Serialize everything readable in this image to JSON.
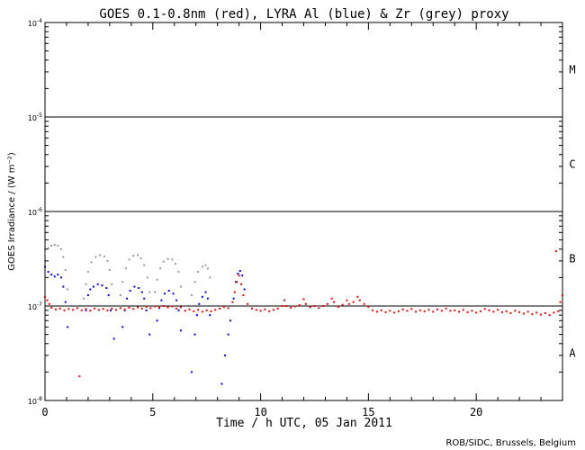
{
  "chart_data": {
    "type": "scatter",
    "title": "GOES 0.1-0.8nm (red), LYRA Al (blue) & Zr (grey) proxy",
    "xlabel": "Time / h UTC, 05 Jan 2011",
    "ylabel": "GOES Irradiance / (W m⁻²)",
    "xlim": [
      0,
      24
    ],
    "ylim": [
      1e-08,
      0.0001
    ],
    "yscale": "log",
    "x_ticks": [
      0,
      5,
      10,
      15,
      20
    ],
    "x_tick_labels": [
      "0",
      "5",
      "10",
      "15",
      "20"
    ],
    "y_tick_labels": [
      {
        "base": "10",
        "exp": "-8",
        "value": 1e-08
      },
      {
        "base": "10",
        "exp": "-7",
        "value": 1e-07
      },
      {
        "base": "10",
        "exp": "-6",
        "value": 1e-06
      },
      {
        "base": "10",
        "exp": "-5",
        "value": 1e-05
      },
      {
        "base": "10",
        "exp": "-4",
        "value": 0.0001
      }
    ],
    "flare_class_lines": [
      1e-07,
      1e-06,
      1e-05
    ],
    "flare_classes": [
      {
        "label": "A",
        "value": 3.16e-08
      },
      {
        "label": "B",
        "value": 3.16e-07
      },
      {
        "label": "C",
        "value": 3.16e-06
      },
      {
        "label": "M",
        "value": 3.16e-05
      }
    ],
    "series": [
      {
        "name": "GOES 0.1-0.8nm",
        "color": "#ff0000",
        "points": [
          [
            0.0,
            1.25e-07
          ],
          [
            0.1,
            1.15e-07
          ],
          [
            0.2,
            1.05e-07
          ],
          [
            0.3,
            9.6e-08
          ],
          [
            0.5,
            9.2e-08
          ],
          [
            0.7,
            9.4e-08
          ],
          [
            0.9,
            9e-08
          ],
          [
            1.1,
            9.3e-08
          ],
          [
            1.3,
            9.1e-08
          ],
          [
            1.5,
            9.5e-08
          ],
          [
            1.6,
            1.8e-08
          ],
          [
            1.7,
            9e-08
          ],
          [
            1.9,
            9.3e-08
          ],
          [
            2.1,
            8.9e-08
          ],
          [
            2.3,
            9.4e-08
          ],
          [
            2.5,
            9.1e-08
          ],
          [
            2.7,
            9.3e-08
          ],
          [
            2.9,
            9e-08
          ],
          [
            3.1,
            9.4e-08
          ],
          [
            3.3,
            9.1e-08
          ],
          [
            3.5,
            9.5e-08
          ],
          [
            3.7,
            9.2e-08
          ],
          [
            3.9,
            9.6e-08
          ],
          [
            4.1,
            9.3e-08
          ],
          [
            4.3,
            9.7e-08
          ],
          [
            4.5,
            9.4e-08
          ],
          [
            4.7,
            9.8e-08
          ],
          [
            4.9,
            9.5e-08
          ],
          [
            5.1,
            9.9e-08
          ],
          [
            5.3,
            9.6e-08
          ],
          [
            5.5,
            1e-07
          ],
          [
            5.7,
            9.7e-08
          ],
          [
            5.9,
            9.9e-08
          ],
          [
            6.1,
            9.4e-08
          ],
          [
            6.3,
            9.7e-08
          ],
          [
            6.5,
            8.9e-08
          ],
          [
            6.7,
            9.2e-08
          ],
          [
            6.9,
            8.8e-08
          ],
          [
            7.1,
            9.1e-08
          ],
          [
            7.3,
            8.7e-08
          ],
          [
            7.5,
            9e-08
          ],
          [
            7.7,
            8.8e-08
          ],
          [
            7.9,
            9.1e-08
          ],
          [
            8.1,
            9.4e-08
          ],
          [
            8.3,
            9.8e-08
          ],
          [
            8.5,
            9.5e-08
          ],
          [
            8.7,
            1.1e-07
          ],
          [
            8.8,
            1.4e-07
          ],
          [
            8.9,
            1.8e-07
          ],
          [
            9.0,
            2.1e-07
          ],
          [
            9.1,
            1.7e-07
          ],
          [
            9.2,
            1.3e-07
          ],
          [
            9.4,
            1.05e-07
          ],
          [
            9.6,
            9.4e-08
          ],
          [
            9.8,
            9.1e-08
          ],
          [
            10.0,
            8.9e-08
          ],
          [
            10.2,
            9.2e-08
          ],
          [
            10.4,
            8.8e-08
          ],
          [
            10.6,
            9.1e-08
          ],
          [
            10.8,
            9.4e-08
          ],
          [
            11.0,
            1e-07
          ],
          [
            11.1,
            1.15e-07
          ],
          [
            11.2,
            1e-07
          ],
          [
            11.4,
            9.6e-08
          ],
          [
            11.6,
            9.9e-08
          ],
          [
            11.8,
            1.02e-07
          ],
          [
            12.0,
            1.18e-07
          ],
          [
            12.1,
            1.05e-07
          ],
          [
            12.3,
            9.7e-08
          ],
          [
            12.5,
            1e-07
          ],
          [
            12.7,
            9.5e-08
          ],
          [
            12.9,
            1e-07
          ],
          [
            13.1,
            1.05e-07
          ],
          [
            13.3,
            1.2e-07
          ],
          [
            13.4,
            1.1e-07
          ],
          [
            13.6,
            9.8e-08
          ],
          [
            13.8,
            1.03e-07
          ],
          [
            14.0,
            1.15e-07
          ],
          [
            14.1,
            1.05e-07
          ],
          [
            14.3,
            1.1e-07
          ],
          [
            14.5,
            1.25e-07
          ],
          [
            14.6,
            1.15e-07
          ],
          [
            14.8,
            1.05e-07
          ],
          [
            15.0,
            9.8e-08
          ],
          [
            15.2,
            9e-08
          ],
          [
            15.4,
            8.7e-08
          ],
          [
            15.6,
            9e-08
          ],
          [
            15.8,
            8.6e-08
          ],
          [
            16.0,
            8.9e-08
          ],
          [
            16.2,
            8.5e-08
          ],
          [
            16.4,
            8.8e-08
          ],
          [
            16.6,
            9.2e-08
          ],
          [
            16.8,
            8.9e-08
          ],
          [
            17.0,
            9.3e-08
          ],
          [
            17.2,
            8.7e-08
          ],
          [
            17.4,
            9e-08
          ],
          [
            17.6,
            8.8e-08
          ],
          [
            17.8,
            9.1e-08
          ],
          [
            18.0,
            8.7e-08
          ],
          [
            18.2,
            9.2e-08
          ],
          [
            18.4,
            8.9e-08
          ],
          [
            18.6,
            9.4e-08
          ],
          [
            18.8,
            8.9e-08
          ],
          [
            19.0,
            9e-08
          ],
          [
            19.2,
            8.7e-08
          ],
          [
            19.4,
            9.1e-08
          ],
          [
            19.6,
            8.6e-08
          ],
          [
            19.8,
            8.9e-08
          ],
          [
            20.0,
            8.5e-08
          ],
          [
            20.2,
            8.8e-08
          ],
          [
            20.4,
            9.3e-08
          ],
          [
            20.6,
            9e-08
          ],
          [
            20.8,
            8.7e-08
          ],
          [
            21.0,
            9.1e-08
          ],
          [
            21.2,
            8.6e-08
          ],
          [
            21.4,
            8.8e-08
          ],
          [
            21.6,
            8.4e-08
          ],
          [
            21.8,
            8.9e-08
          ],
          [
            22.0,
            8.6e-08
          ],
          [
            22.2,
            8.3e-08
          ],
          [
            22.4,
            8.7e-08
          ],
          [
            22.6,
            8.2e-08
          ],
          [
            22.8,
            8.5e-08
          ],
          [
            23.0,
            8.1e-08
          ],
          [
            23.2,
            8.4e-08
          ],
          [
            23.4,
            8e-08
          ],
          [
            23.6,
            8.5e-08
          ],
          [
            23.7,
            3.8e-07
          ],
          [
            23.8,
            8.8e-08
          ],
          [
            23.9,
            1.1e-07
          ],
          [
            24.0,
            1.3e-07
          ]
        ]
      },
      {
        "name": "LYRA Al",
        "color": "#0000ff",
        "points": [
          [
            0.0,
            2.6e-07
          ],
          [
            0.15,
            2.3e-07
          ],
          [
            0.3,
            2.15e-07
          ],
          [
            0.45,
            2.05e-07
          ],
          [
            0.6,
            2.15e-07
          ],
          [
            0.75,
            2e-07
          ],
          [
            0.85,
            1.6e-07
          ],
          [
            0.95,
            1.1e-07
          ],
          [
            1.05,
            6e-08
          ],
          [
            1.9,
            9e-08
          ],
          [
            2.0,
            1.3e-07
          ],
          [
            2.1,
            1.5e-07
          ],
          [
            2.25,
            1.6e-07
          ],
          [
            2.45,
            1.7e-07
          ],
          [
            2.65,
            1.65e-07
          ],
          [
            2.85,
            1.55e-07
          ],
          [
            2.95,
            1.3e-07
          ],
          [
            3.05,
            9e-08
          ],
          [
            3.2,
            4.5e-08
          ],
          [
            3.6,
            6e-08
          ],
          [
            3.7,
            9e-08
          ],
          [
            3.8,
            1.2e-07
          ],
          [
            3.95,
            1.45e-07
          ],
          [
            4.15,
            1.6e-07
          ],
          [
            4.35,
            1.55e-07
          ],
          [
            4.5,
            1.4e-07
          ],
          [
            4.6,
            1.2e-07
          ],
          [
            4.7,
            9e-08
          ],
          [
            4.85,
            5e-08
          ],
          [
            5.2,
            7e-08
          ],
          [
            5.3,
            9.5e-08
          ],
          [
            5.4,
            1.15e-07
          ],
          [
            5.55,
            1.35e-07
          ],
          [
            5.75,
            1.45e-07
          ],
          [
            5.95,
            1.35e-07
          ],
          [
            6.1,
            1.15e-07
          ],
          [
            6.2,
            9e-08
          ],
          [
            6.3,
            5.5e-08
          ],
          [
            6.8,
            2e-08
          ],
          [
            6.95,
            5e-08
          ],
          [
            7.05,
            8e-08
          ],
          [
            7.15,
            1.05e-07
          ],
          [
            7.3,
            1.25e-07
          ],
          [
            7.45,
            1.4e-07
          ],
          [
            7.55,
            1.2e-07
          ],
          [
            7.65,
            8e-08
          ],
          [
            8.2,
            1.5e-08
          ],
          [
            8.35,
            3e-08
          ],
          [
            8.5,
            5e-08
          ],
          [
            8.6,
            7e-08
          ],
          [
            8.75,
            1.2e-07
          ],
          [
            8.85,
            1.8e-07
          ],
          [
            8.95,
            2.2e-07
          ],
          [
            9.05,
            2.35e-07
          ],
          [
            9.15,
            2.1e-07
          ],
          [
            9.25,
            1.5e-07
          ]
        ]
      },
      {
        "name": "LYRA Zr",
        "color": "#999999",
        "points": [
          [
            0.0,
            3.6e-07
          ],
          [
            0.15,
            4.1e-07
          ],
          [
            0.3,
            4.35e-07
          ],
          [
            0.45,
            4.45e-07
          ],
          [
            0.6,
            4.35e-07
          ],
          [
            0.75,
            4e-07
          ],
          [
            0.85,
            3.3e-07
          ],
          [
            0.95,
            2.4e-07
          ],
          [
            1.05,
            1.5e-07
          ],
          [
            1.8,
            1.2e-07
          ],
          [
            1.9,
            1.7e-07
          ],
          [
            2.0,
            2.3e-07
          ],
          [
            2.15,
            2.9e-07
          ],
          [
            2.35,
            3.3e-07
          ],
          [
            2.55,
            3.45e-07
          ],
          [
            2.75,
            3.35e-07
          ],
          [
            2.9,
            3e-07
          ],
          [
            3.0,
            2.4e-07
          ],
          [
            3.1,
            1.7e-07
          ],
          [
            3.5,
            1.3e-07
          ],
          [
            3.6,
            1.8e-07
          ],
          [
            3.75,
            2.5e-07
          ],
          [
            3.9,
            3.1e-07
          ],
          [
            4.1,
            3.4e-07
          ],
          [
            4.3,
            3.45e-07
          ],
          [
            4.45,
            3.2e-07
          ],
          [
            4.6,
            2.7e-07
          ],
          [
            4.75,
            2e-07
          ],
          [
            4.85,
            1.4e-07
          ],
          [
            5.1,
            1.4e-07
          ],
          [
            5.2,
            1.9e-07
          ],
          [
            5.35,
            2.5e-07
          ],
          [
            5.5,
            2.95e-07
          ],
          [
            5.7,
            3.15e-07
          ],
          [
            5.9,
            3.1e-07
          ],
          [
            6.05,
            2.8e-07
          ],
          [
            6.2,
            2.3e-07
          ],
          [
            6.3,
            1.6e-07
          ],
          [
            6.8,
            1.3e-07
          ],
          [
            6.95,
            1.8e-07
          ],
          [
            7.1,
            2.3e-07
          ],
          [
            7.3,
            2.6e-07
          ],
          [
            7.45,
            2.7e-07
          ],
          [
            7.55,
            2.5e-07
          ],
          [
            7.65,
            2e-07
          ]
        ]
      }
    ]
  },
  "credit": "ROB/SIDC, Brussels, Belgium"
}
